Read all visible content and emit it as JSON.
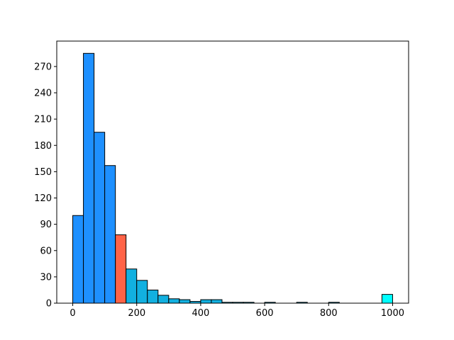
{
  "chart_data": {
    "type": "bar",
    "title": "",
    "xlabel": "",
    "ylabel": "",
    "bin_width": 33.33,
    "bins": [
      {
        "x0": 0.0,
        "value": 100,
        "color": "#1e90ff"
      },
      {
        "x0": 33.33,
        "value": 285,
        "color": "#1e90ff"
      },
      {
        "x0": 66.67,
        "value": 195,
        "color": "#1e90ff"
      },
      {
        "x0": 100.0,
        "value": 157,
        "color": "#1e90ff"
      },
      {
        "x0": 133.33,
        "value": 78,
        "color": "#ff6347"
      },
      {
        "x0": 166.67,
        "value": 39,
        "color": "#12b0e0"
      },
      {
        "x0": 200.0,
        "value": 26,
        "color": "#12b0e0"
      },
      {
        "x0": 233.33,
        "value": 15,
        "color": "#12b0e0"
      },
      {
        "x0": 266.67,
        "value": 9,
        "color": "#12b0e0"
      },
      {
        "x0": 300.0,
        "value": 5,
        "color": "#12b0e0"
      },
      {
        "x0": 333.33,
        "value": 4,
        "color": "#12b0e0"
      },
      {
        "x0": 366.67,
        "value": 2,
        "color": "#12b0e0"
      },
      {
        "x0": 400.0,
        "value": 4,
        "color": "#12b0e0"
      },
      {
        "x0": 433.33,
        "value": 4,
        "color": "#12b0e0"
      },
      {
        "x0": 466.67,
        "value": 1,
        "color": "#12b0e0"
      },
      {
        "x0": 500.0,
        "value": 1,
        "color": "#12b0e0"
      },
      {
        "x0": 533.33,
        "value": 1,
        "color": "#12b0e0"
      },
      {
        "x0": 566.67,
        "value": 0,
        "color": "#12b0e0"
      },
      {
        "x0": 600.0,
        "value": 1,
        "color": "#12b0e0"
      },
      {
        "x0": 633.33,
        "value": 0,
        "color": "#12b0e0"
      },
      {
        "x0": 666.67,
        "value": 0,
        "color": "#12b0e0"
      },
      {
        "x0": 700.0,
        "value": 1,
        "color": "#12b0e0"
      },
      {
        "x0": 733.33,
        "value": 0,
        "color": "#12b0e0"
      },
      {
        "x0": 766.67,
        "value": 0,
        "color": "#12b0e0"
      },
      {
        "x0": 800.0,
        "value": 1,
        "color": "#12b0e0"
      },
      {
        "x0": 833.33,
        "value": 0,
        "color": "#12b0e0"
      },
      {
        "x0": 866.67,
        "value": 0,
        "color": "#12b0e0"
      },
      {
        "x0": 900.0,
        "value": 0,
        "color": "#12b0e0"
      },
      {
        "x0": 933.33,
        "value": 0,
        "color": "#12b0e0"
      },
      {
        "x0": 966.67,
        "value": 10,
        "color": "#00ffff"
      }
    ],
    "xlim": [
      -50,
      1050
    ],
    "ylim": [
      0,
      299
    ],
    "xticks": [
      0,
      200,
      400,
      600,
      800,
      1000
    ],
    "xtick_labels": [
      "0",
      "200",
      "400",
      "600",
      "800",
      "1000"
    ],
    "yticks": [
      0,
      30,
      60,
      90,
      120,
      150,
      180,
      210,
      240,
      270
    ],
    "ytick_labels": [
      "0",
      "30",
      "60",
      "90",
      "120",
      "150",
      "180",
      "210",
      "240",
      "270"
    ],
    "grid": false,
    "legend": "none",
    "edge_color": "#000000"
  }
}
